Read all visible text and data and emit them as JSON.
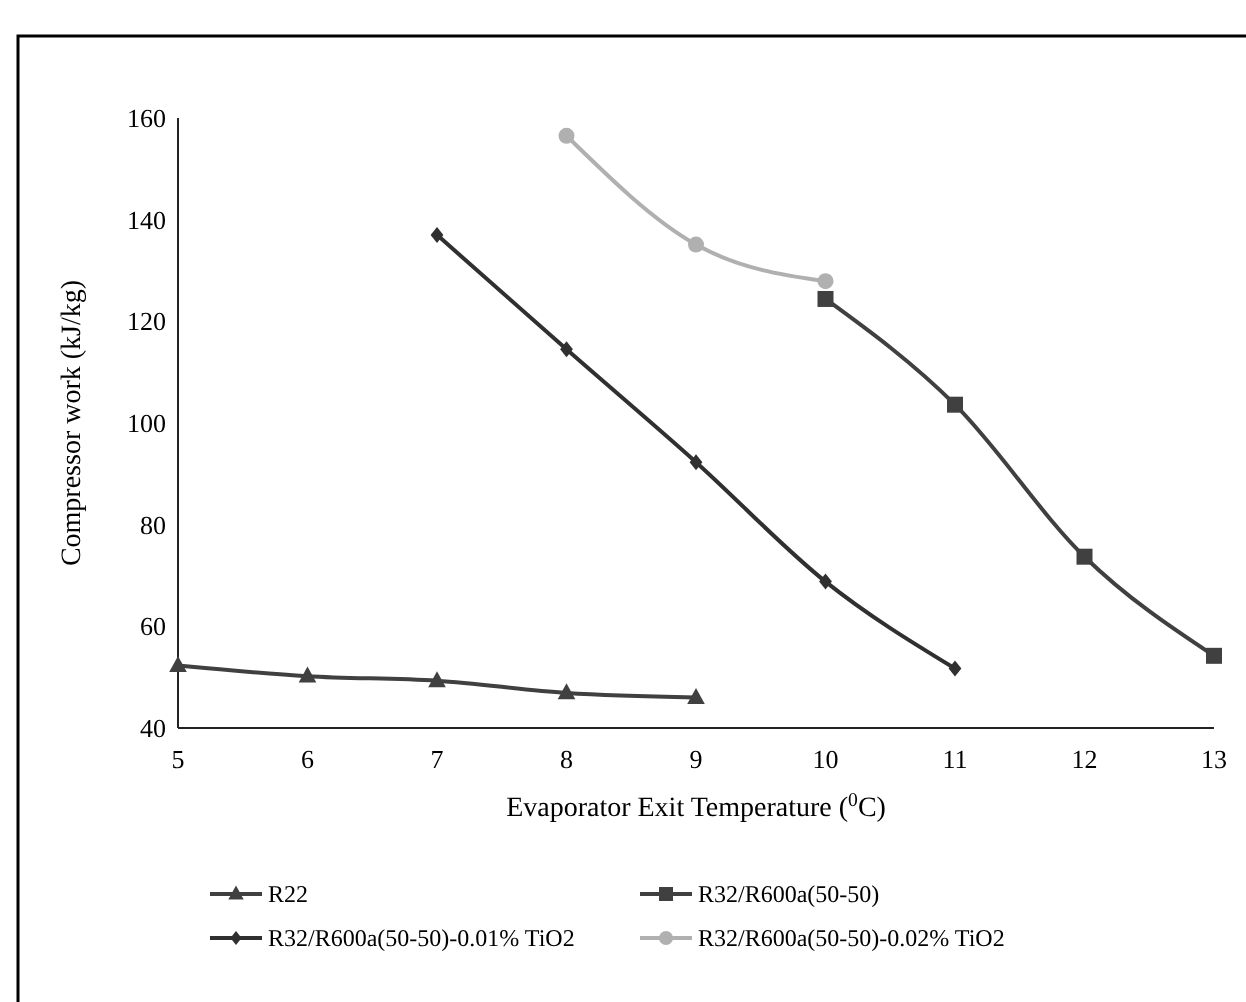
{
  "chart_data": {
    "type": "line",
    "xlabel": "Evaporator Exit Temperature ($^{0}$C)",
    "ylabel": "Compressor work (kJ/kg)",
    "xlim": [
      5,
      13
    ],
    "xticks": [
      5,
      6,
      7,
      8,
      9,
      10,
      11,
      12,
      13
    ],
    "ylim": [
      40,
      160
    ],
    "yticks": [
      40,
      60,
      80,
      100,
      120,
      140,
      160
    ],
    "grid": false,
    "legend": "bottom",
    "series": [
      {
        "name": "R22",
        "color": "#404040",
        "marker": "triangle",
        "x": [
          5,
          6,
          7,
          8,
          9
        ],
        "values": [
          52.3,
          50.2,
          49.3,
          46.9,
          46
        ]
      },
      {
        "name": "R32/R600a(50-50)",
        "color": "#404040",
        "marker": "square",
        "x": [
          10,
          11,
          12,
          13
        ],
        "values": [
          124.4,
          103.6,
          73.7,
          54.2
        ]
      },
      {
        "name": "R32/R600a(50-50)-0.01% TiO2",
        "color": "#303030",
        "marker": "diamond",
        "x": [
          7,
          8,
          9,
          10,
          11
        ],
        "values": [
          137,
          114.5,
          92.3,
          68.8,
          51.7
        ]
      },
      {
        "name": "R32/R600a(50-50)-0.02% TiO2",
        "color": "#b0b0b0",
        "marker": "circle",
        "x": [
          8,
          9,
          10
        ],
        "values": [
          156.5,
          135.1,
          127.9
        ]
      }
    ]
  }
}
